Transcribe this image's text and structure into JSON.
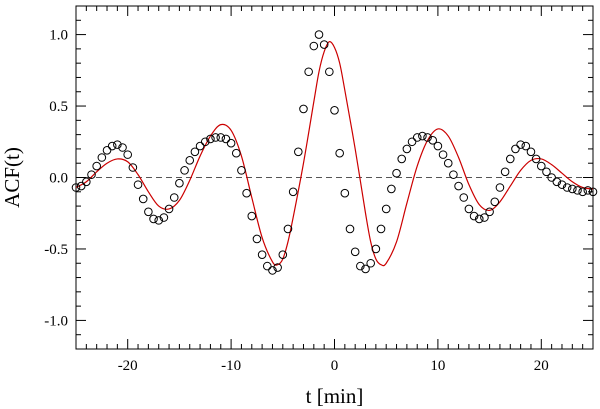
{
  "chart_data": {
    "type": "scatter",
    "xlabel": "t [min]",
    "ylabel": "ACF(t)",
    "xlim": [
      -25,
      25
    ],
    "ylim": [
      -1.2,
      1.2
    ],
    "grid": false,
    "x_ticks": [
      -20,
      -10,
      0,
      10,
      20
    ],
    "x_tick_labels": [
      "-20",
      "-10",
      "0",
      "10",
      "20"
    ],
    "y_ticks": [
      -1.0,
      -0.5,
      0.0,
      0.5,
      1.0
    ],
    "y_tick_labels": [
      "-1.0",
      "-0.5",
      "0.0",
      "0.5",
      "1.0"
    ],
    "reference_line": {
      "y": 0.0,
      "style": "dashed",
      "color": "#555555"
    },
    "series": [
      {
        "type": "scatter",
        "marker": "open-circle",
        "color": "#000000",
        "x": [
          -25,
          -24.5,
          -24,
          -23.5,
          -23,
          -22.5,
          -22,
          -21.5,
          -21,
          -20.5,
          -20,
          -19.5,
          -19,
          -18.5,
          -18,
          -17.5,
          -17,
          -16.5,
          -16,
          -15.5,
          -15,
          -14.5,
          -14,
          -13.5,
          -13,
          -12.5,
          -12,
          -11.5,
          -11,
          -10.5,
          -10,
          -9.5,
          -9,
          -8.5,
          -8,
          -7.5,
          -7,
          -6.5,
          -6,
          -5.5,
          -5,
          -4.5,
          -4,
          -3.5,
          -3,
          -2.5,
          -2,
          -1.5,
          -1,
          -0.5,
          0,
          0.5,
          1,
          1.5,
          2,
          2.5,
          3,
          3.5,
          4,
          4.5,
          5,
          5.5,
          6,
          6.5,
          7,
          7.5,
          8,
          8.5,
          9,
          9.5,
          10,
          10.5,
          11,
          11.5,
          12,
          12.5,
          13,
          13.5,
          14,
          14.5,
          15,
          15.5,
          16,
          16.5,
          17,
          17.5,
          18,
          18.5,
          19,
          19.5,
          20,
          20.5,
          21,
          21.5,
          22,
          22.5,
          23,
          23.5,
          24,
          24.5,
          25
        ],
        "y": [
          -0.07,
          -0.06,
          -0.03,
          0.02,
          0.08,
          0.14,
          0.19,
          0.22,
          0.23,
          0.21,
          0.16,
          0.07,
          -0.05,
          -0.15,
          -0.24,
          -0.29,
          -0.3,
          -0.28,
          -0.22,
          -0.14,
          -0.04,
          0.05,
          0.12,
          0.18,
          0.22,
          0.25,
          0.27,
          0.28,
          0.28,
          0.27,
          0.24,
          0.17,
          0.05,
          -0.11,
          -0.27,
          -0.43,
          -0.54,
          -0.62,
          -0.65,
          -0.63,
          -0.54,
          -0.36,
          -0.1,
          0.18,
          0.48,
          0.74,
          0.92,
          1.0,
          0.93,
          0.74,
          0.47,
          0.17,
          -0.11,
          -0.36,
          -0.52,
          -0.62,
          -0.64,
          -0.6,
          -0.5,
          -0.36,
          -0.22,
          -0.08,
          0.03,
          0.13,
          0.2,
          0.25,
          0.28,
          0.29,
          0.28,
          0.26,
          0.22,
          0.16,
          0.1,
          0.02,
          -0.06,
          -0.14,
          -0.22,
          -0.27,
          -0.29,
          -0.28,
          -0.24,
          -0.17,
          -0.07,
          0.04,
          0.13,
          0.2,
          0.23,
          0.22,
          0.18,
          0.13,
          0.08,
          0.04,
          0.0,
          -0.03,
          -0.05,
          -0.07,
          -0.08,
          -0.09,
          -0.1,
          -0.09,
          -0.1
        ]
      },
      {
        "type": "line",
        "color": "#cc0000",
        "x": [
          -25,
          -24,
          -23,
          -22,
          -21,
          -20,
          -19,
          -18,
          -17,
          -16,
          -15,
          -14,
          -13,
          -12,
          -11,
          -10,
          -9,
          -8,
          -7,
          -6,
          -5.5,
          -5,
          -4.5,
          -4,
          -3,
          -2,
          -1.5,
          -1,
          -0.5,
          0,
          0.5,
          1,
          2,
          3,
          3.5,
          4,
          4.5,
          5,
          6,
          7,
          8,
          9,
          10,
          11,
          12,
          13,
          14,
          15,
          16,
          17,
          18,
          19,
          20,
          21,
          22,
          23,
          24,
          25
        ],
        "y": [
          -0.07,
          -0.03,
          0.04,
          0.1,
          0.13,
          0.11,
          0.02,
          -0.1,
          -0.2,
          -0.22,
          -0.16,
          -0.02,
          0.15,
          0.29,
          0.37,
          0.33,
          0.15,
          -0.14,
          -0.42,
          -0.59,
          -0.61,
          -0.57,
          -0.45,
          -0.28,
          0.1,
          0.53,
          0.74,
          0.88,
          0.95,
          0.91,
          0.8,
          0.61,
          0.2,
          -0.25,
          -0.45,
          -0.57,
          -0.61,
          -0.6,
          -0.45,
          -0.18,
          0.08,
          0.26,
          0.34,
          0.29,
          0.14,
          -0.05,
          -0.19,
          -0.23,
          -0.17,
          -0.06,
          0.05,
          0.12,
          0.13,
          0.09,
          0.03,
          -0.03,
          -0.07,
          -0.08
        ]
      }
    ]
  }
}
